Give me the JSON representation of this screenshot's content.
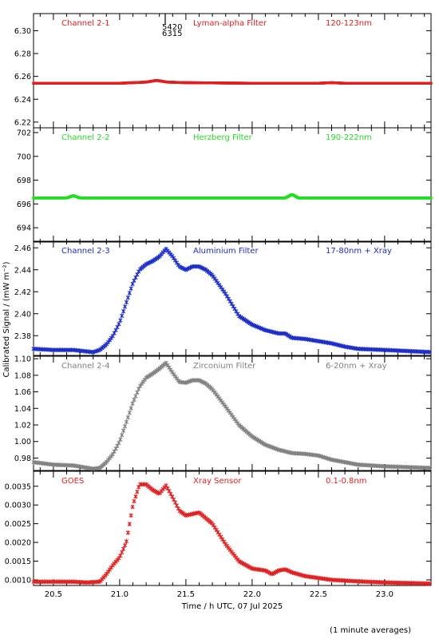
{
  "figure": {
    "ylabel_html_note": "",
    "ylabel": "Calibrated Signal / (mW m⁻²)",
    "xlabel": "Time / h UTC, 07 Jul 2025",
    "footnote": "(1 minute averages)",
    "x_ticks": [
      "20.5",
      "21.0",
      "21.5",
      "22.0",
      "22.5",
      "23.0"
    ],
    "top_marker_labels": [
      "5420",
      "6315"
    ]
  },
  "chart_data": [
    {
      "type": "scatter",
      "channel": "Channel 2-1",
      "filter": "Lyman-alpha Filter",
      "band": "120-123nm",
      "color": "#e02020",
      "xlim": [
        20.35,
        23.35
      ],
      "ylim": [
        6.215,
        6.315
      ],
      "yticks": [
        "6.22",
        "6.24",
        "6.26",
        "6.28",
        "6.30"
      ],
      "ytick_values": [
        6.22,
        6.24,
        6.26,
        6.28,
        6.3
      ],
      "x": [
        20.35,
        21.0,
        21.2,
        21.28,
        21.36,
        21.5,
        22.0,
        22.5,
        22.6,
        22.7,
        23.35
      ],
      "y": [
        6.254,
        6.254,
        6.255,
        6.2565,
        6.255,
        6.2545,
        6.254,
        6.254,
        6.2545,
        6.254,
        6.254
      ]
    },
    {
      "type": "scatter",
      "channel": "Channel 2-2",
      "filter": "Herzberg Filter",
      "band": "190-222nm",
      "color": "#22dd22",
      "xlim": [
        20.35,
        23.35
      ],
      "ylim": [
        692.8,
        702.4
      ],
      "yticks": [
        "694",
        "696",
        "698",
        "700",
        "702"
      ],
      "ytick_values": [
        694,
        696,
        698,
        700,
        702
      ],
      "x": [
        20.35,
        20.6,
        20.65,
        20.7,
        22.25,
        22.3,
        22.35,
        23.35
      ],
      "y": [
        696.5,
        696.5,
        696.7,
        696.5,
        696.5,
        696.8,
        696.5,
        696.5
      ]
    },
    {
      "type": "scatter",
      "channel": "Channel 2-3",
      "filter": "Aluminium Filter",
      "band": "17-80nm + Xray",
      "color": "#1a2cc8",
      "xlim": [
        20.35,
        23.35
      ],
      "ylim": [
        2.362,
        2.466
      ],
      "yticks": [
        "2.38",
        "2.40",
        "2.42",
        "2.44",
        "2.46"
      ],
      "ytick_values": [
        2.38,
        2.4,
        2.42,
        2.44,
        2.46
      ],
      "x": [
        20.35,
        20.5,
        20.65,
        20.8,
        20.85,
        20.9,
        20.95,
        21.0,
        21.05,
        21.1,
        21.15,
        21.2,
        21.25,
        21.3,
        21.35,
        21.4,
        21.45,
        21.5,
        21.55,
        21.6,
        21.65,
        21.7,
        21.8,
        21.9,
        22.0,
        22.1,
        22.2,
        22.25,
        22.3,
        22.4,
        22.5,
        22.6,
        22.7,
        22.8,
        23.0,
        23.35
      ],
      "y": [
        2.368,
        2.367,
        2.367,
        2.365,
        2.367,
        2.372,
        2.38,
        2.392,
        2.41,
        2.428,
        2.44,
        2.445,
        2.448,
        2.452,
        2.459,
        2.452,
        2.443,
        2.44,
        2.443,
        2.443,
        2.44,
        2.435,
        2.418,
        2.398,
        2.39,
        2.385,
        2.382,
        2.382,
        2.378,
        2.377,
        2.375,
        2.373,
        2.37,
        2.368,
        2.367,
        2.365
      ]
    },
    {
      "type": "scatter",
      "channel": "Channel 2-4",
      "filter": "Zirconium Filter",
      "band": "6-20nm + Xray",
      "color": "#808080",
      "xlim": [
        20.35,
        23.35
      ],
      "ylim": [
        0.965,
        1.103
      ],
      "yticks": [
        "0.98",
        "1.00",
        "1.02",
        "1.04",
        "1.06",
        "1.08",
        "1.10"
      ],
      "ytick_values": [
        0.98,
        1.0,
        1.02,
        1.04,
        1.06,
        1.08,
        1.1
      ],
      "x": [
        20.35,
        20.5,
        20.65,
        20.8,
        20.85,
        20.9,
        20.95,
        21.0,
        21.05,
        21.1,
        21.15,
        21.2,
        21.25,
        21.3,
        21.35,
        21.4,
        21.45,
        21.5,
        21.55,
        21.6,
        21.65,
        21.7,
        21.8,
        21.9,
        22.0,
        22.1,
        22.2,
        22.25,
        22.3,
        22.4,
        22.5,
        22.6,
        22.7,
        22.8,
        23.0,
        23.35
      ],
      "y": [
        0.975,
        0.972,
        0.971,
        0.967,
        0.968,
        0.975,
        0.985,
        1.0,
        1.023,
        1.047,
        1.066,
        1.077,
        1.082,
        1.088,
        1.095,
        1.083,
        1.072,
        1.071,
        1.074,
        1.074,
        1.07,
        1.063,
        1.042,
        1.02,
        1.006,
        0.996,
        0.99,
        0.988,
        0.986,
        0.985,
        0.983,
        0.978,
        0.975,
        0.972,
        0.97,
        0.968
      ]
    },
    {
      "type": "scatter",
      "channel": "GOES",
      "filter": "Xray Sensor",
      "band": "0.1-0.8nm",
      "color": "#e02020",
      "xlim": [
        20.35,
        23.35
      ],
      "ylim": [
        0.00085,
        0.0039
      ],
      "yticks": [
        "0.0010",
        "0.0015",
        "0.0020",
        "0.0025",
        "0.0030",
        "0.0035"
      ],
      "ytick_values": [
        0.001,
        0.0015,
        0.002,
        0.0025,
        0.003,
        0.0035
      ],
      "x": [
        20.35,
        20.5,
        20.65,
        20.75,
        20.85,
        20.9,
        20.95,
        21.0,
        21.05,
        21.1,
        21.15,
        21.2,
        21.25,
        21.3,
        21.35,
        21.4,
        21.45,
        21.5,
        21.6,
        21.7,
        21.8,
        21.9,
        22.0,
        22.1,
        22.15,
        22.2,
        22.25,
        22.3,
        22.4,
        22.5,
        22.6,
        22.8,
        23.0,
        23.35
      ],
      "y": [
        0.00095,
        0.00095,
        0.00095,
        0.00093,
        0.00095,
        0.00115,
        0.0014,
        0.0016,
        0.002,
        0.003,
        0.00355,
        0.00355,
        0.0034,
        0.0033,
        0.00352,
        0.0032,
        0.00285,
        0.00272,
        0.0028,
        0.0025,
        0.00195,
        0.0015,
        0.0013,
        0.00125,
        0.00115,
        0.00125,
        0.00128,
        0.0012,
        0.0011,
        0.00105,
        0.001,
        0.00096,
        0.00093,
        0.0009
      ]
    }
  ]
}
